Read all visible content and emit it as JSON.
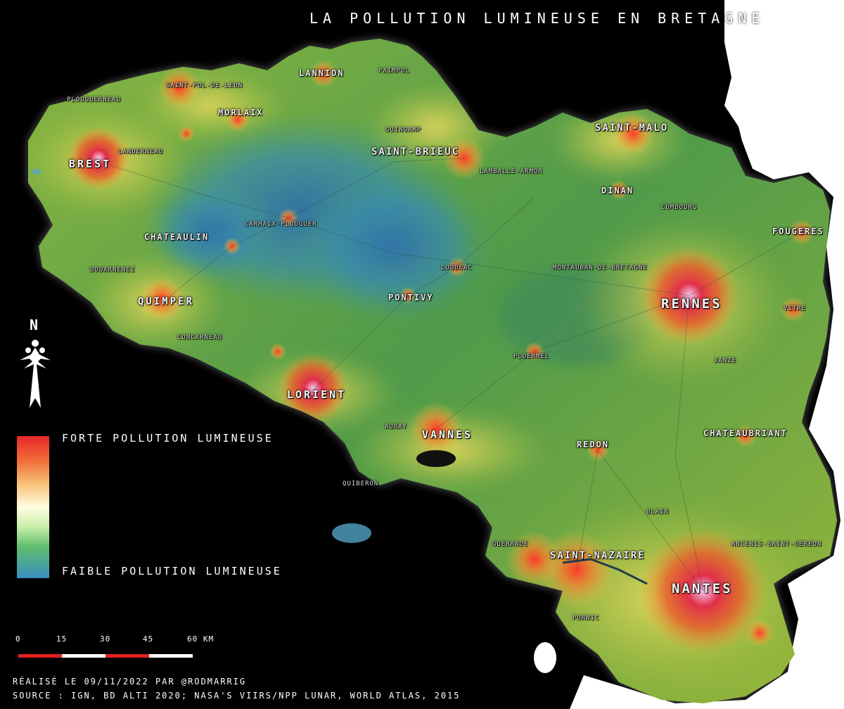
{
  "title": "LA POLLUTION LUMINEUSE EN BRETAGNE",
  "cities": {
    "brest": "BREST",
    "lannion": "LANNION",
    "paimpol": "PAIMPOL",
    "saint_pol": "SAINT-POL-DE-LEON",
    "plouguerneau": "PLOUGUERNEAU",
    "morlaix": "MORLAIX",
    "guingamp": "GUINGAMP",
    "saint_brieuc": "SAINT-BRIEUC",
    "landerneau": "LANDERNEAU",
    "saint_malo": "SAINT-MALO",
    "lamballe": "LAMBALLE-ARMOR",
    "dinan": "DINAN",
    "combourg": "COMBOURG",
    "fougeres": "FOUGERES",
    "chateaulin": "CHATEAULIN",
    "carhaix": "CARHAIX-PLOUGUER",
    "douarnenez": "DOUARNENEZ",
    "loudeac": "LOUDEAC",
    "montauban": "MONTAUBAN-DE-BRETAGNE",
    "quimper": "QUIMPER",
    "pontivy": "PONTIVY",
    "rennes": "RENNES",
    "vitre": "VITRE",
    "concarneau": "CONCARNEAU",
    "ploermel": "PLOERMEL",
    "janze": "JANZE",
    "lorient": "LORIENT",
    "auray": "AURAY",
    "vannes": "VANNES",
    "redon": "REDON",
    "chateaubriant": "CHATEAUBRIANT",
    "quiberon": "QUIBERON",
    "blain": "BLAIN",
    "guerande": "GUERANDE",
    "saint_nazaire": "SAINT-NAZAIRE",
    "ancenis": "ANCENIS-SAINT-GEREON",
    "nantes": "NANTES",
    "pornic": "PORNIC"
  },
  "legend": {
    "high": "FORTE POLLUTION LUMINEUSE",
    "low": "FAIBLE POLLUTION LUMINEUSE",
    "colors": [
      "#e8262a",
      "#f0703a",
      "#f8c27a",
      "#fffde0",
      "#c8eda8",
      "#5fbe6e",
      "#3a8ec0"
    ]
  },
  "compass": {
    "label": "N",
    "icon": "ermine-north-arrow-icon"
  },
  "scale": {
    "labels": [
      "0",
      "15",
      "30",
      "45",
      "60 KM"
    ]
  },
  "credits": {
    "author": "RÉALISÉ LE 09/11/2022 PAR @RODMARRIG",
    "source": "SOURCE : IGN, BD ALTI 2020; NASA'S VIIRS/NPP LUNAR, WORLD ATLAS, 2015"
  }
}
